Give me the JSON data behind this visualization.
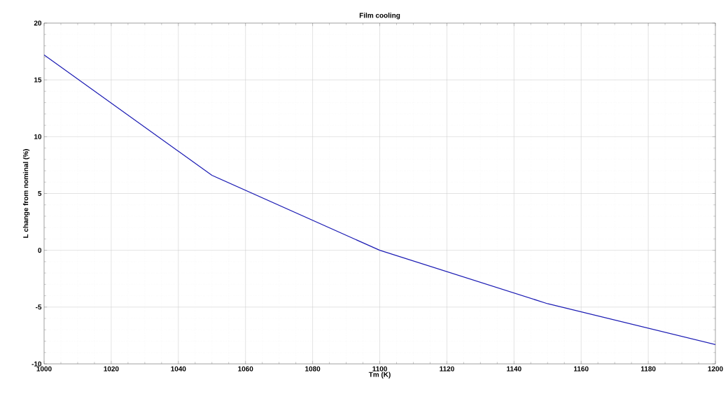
{
  "chart_data": {
    "type": "line",
    "title": "Film cooling",
    "xlabel": "Tm (K)",
    "ylabel": "L change from nominal (%)",
    "x": [
      1000,
      1050,
      1100,
      1150,
      1200
    ],
    "series": [
      {
        "color": "#1c1cb4",
        "values": [
          17.2,
          6.6,
          0,
          -4.7,
          -8.3
        ]
      }
    ],
    "xlim": [
      1000,
      1200
    ],
    "ylim": [
      -10,
      20
    ],
    "xticks": [
      1000,
      1020,
      1040,
      1060,
      1080,
      1100,
      1120,
      1140,
      1160,
      1180,
      1200
    ],
    "yticks": [
      -10,
      -5,
      0,
      5,
      10,
      15,
      20
    ],
    "grid": true,
    "marker": "none",
    "line_style": "solid"
  }
}
